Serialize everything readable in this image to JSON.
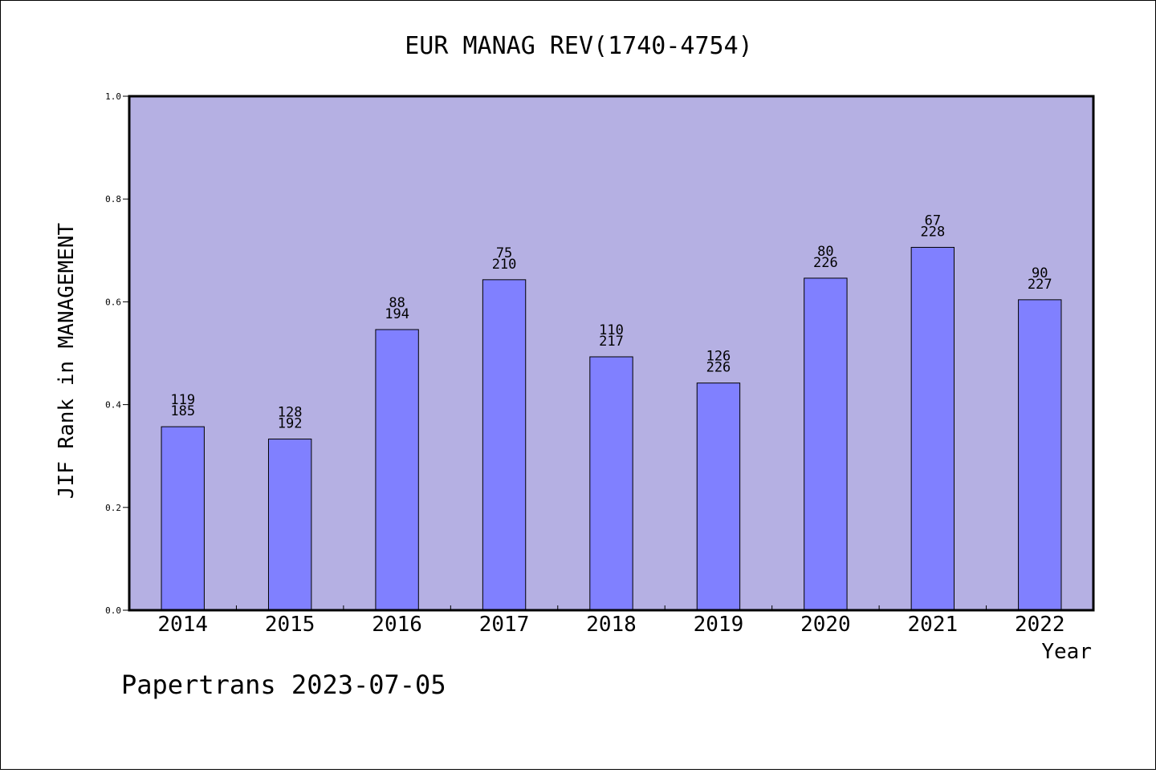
{
  "chart_data": {
    "type": "bar",
    "title": "EUR MANAG REV(1740-4754)",
    "xlabel": "Year",
    "ylabel": "JIF Rank in MANAGEMENT",
    "ylim": [
      0.0,
      1.0
    ],
    "yticks": [
      "0.0",
      "0.2",
      "0.4",
      "0.6",
      "0.8",
      "1.0"
    ],
    "categories": [
      "2014",
      "2015",
      "2016",
      "2017",
      "2018",
      "2019",
      "2020",
      "2021",
      "2022"
    ],
    "values": [
      0.357,
      0.333,
      0.546,
      0.643,
      0.493,
      0.442,
      0.646,
      0.706,
      0.604
    ],
    "rank": [
      "119",
      "128",
      "88",
      "75",
      "110",
      "126",
      "80",
      "67",
      "90"
    ],
    "total": [
      "185",
      "192",
      "194",
      "210",
      "217",
      "226",
      "226",
      "228",
      "227"
    ],
    "colors": {
      "plot_bg": "#b5b0e3",
      "bar": "#8080ff"
    },
    "grid": false,
    "legend": "none"
  },
  "footer": "Papertrans 2023-07-05"
}
